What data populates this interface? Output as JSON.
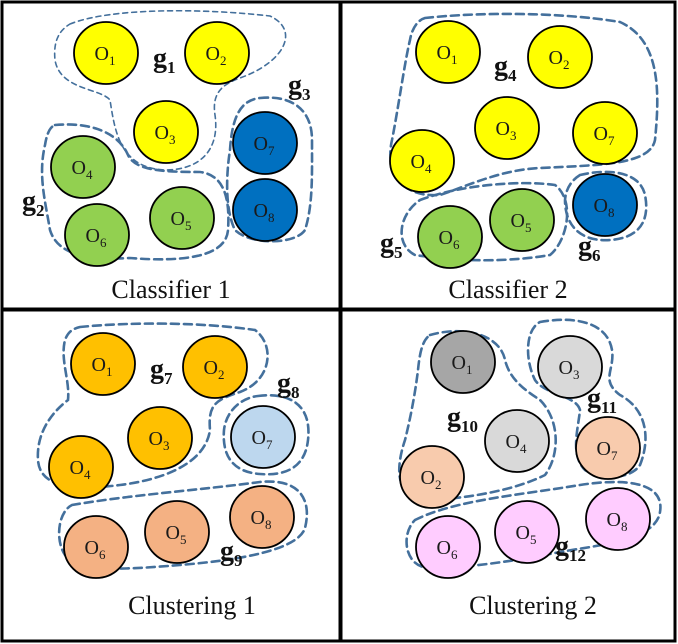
{
  "panels": [
    {
      "caption": "Classifier 1",
      "nodes": [
        {
          "label": "O",
          "sub": "1",
          "color": "#ffff00"
        },
        {
          "label": "O",
          "sub": "2",
          "color": "#ffff00"
        },
        {
          "label": "O",
          "sub": "3",
          "color": "#ffff00"
        },
        {
          "label": "O",
          "sub": "4",
          "color": "#92d050"
        },
        {
          "label": "O",
          "sub": "6",
          "color": "#92d050"
        },
        {
          "label": "O",
          "sub": "5",
          "color": "#92d050"
        },
        {
          "label": "O",
          "sub": "7",
          "color": "#0070c0"
        },
        {
          "label": "O",
          "sub": "8",
          "color": "#0070c0"
        }
      ],
      "groups": [
        {
          "label": "g",
          "sub": "1"
        },
        {
          "label": "g",
          "sub": "2"
        },
        {
          "label": "g",
          "sub": "3"
        }
      ]
    },
    {
      "caption": "Classifier 2",
      "nodes": [
        {
          "label": "O",
          "sub": "1",
          "color": "#ffff00"
        },
        {
          "label": "O",
          "sub": "2",
          "color": "#ffff00"
        },
        {
          "label": "O",
          "sub": "3",
          "color": "#ffff00"
        },
        {
          "label": "O",
          "sub": "7",
          "color": "#ffff00"
        },
        {
          "label": "O",
          "sub": "4",
          "color": "#ffff00"
        },
        {
          "label": "O",
          "sub": "6",
          "color": "#92d050"
        },
        {
          "label": "O",
          "sub": "5",
          "color": "#92d050"
        },
        {
          "label": "O",
          "sub": "8",
          "color": "#0070c0"
        }
      ],
      "groups": [
        {
          "label": "g",
          "sub": "4"
        },
        {
          "label": "g",
          "sub": "5"
        },
        {
          "label": "g",
          "sub": "6"
        }
      ]
    },
    {
      "caption": "Clustering 1",
      "nodes": [
        {
          "label": "O",
          "sub": "1",
          "color": "#ffc000"
        },
        {
          "label": "O",
          "sub": "2",
          "color": "#ffc000"
        },
        {
          "label": "O",
          "sub": "3",
          "color": "#ffc000"
        },
        {
          "label": "O",
          "sub": "4",
          "color": "#ffc000"
        },
        {
          "label": "O",
          "sub": "7",
          "color": "#bdd7ee"
        },
        {
          "label": "O",
          "sub": "6",
          "color": "#f4b183"
        },
        {
          "label": "O",
          "sub": "5",
          "color": "#f4b183"
        },
        {
          "label": "O",
          "sub": "8",
          "color": "#f4b183"
        }
      ],
      "groups": [
        {
          "label": "g",
          "sub": "7"
        },
        {
          "label": "g",
          "sub": "8"
        },
        {
          "label": "g",
          "sub": "9"
        }
      ]
    },
    {
      "caption": "Clustering 2",
      "nodes": [
        {
          "label": "O",
          "sub": "1",
          "color": "#a6a6a6"
        },
        {
          "label": "O",
          "sub": "3",
          "color": "#d9d9d9"
        },
        {
          "label": "O",
          "sub": "4",
          "color": "#d9d9d9"
        },
        {
          "label": "O",
          "sub": "2",
          "color": "#f8cbad"
        },
        {
          "label": "O",
          "sub": "7",
          "color": "#f8cbad"
        },
        {
          "label": "O",
          "sub": "6",
          "color": "#ffccff"
        },
        {
          "label": "O",
          "sub": "5",
          "color": "#ffccff"
        },
        {
          "label": "O",
          "sub": "8",
          "color": "#ffccff"
        }
      ],
      "groups": [
        {
          "label": "g",
          "sub": "10"
        },
        {
          "label": "g",
          "sub": "11"
        },
        {
          "label": "g",
          "sub": "12"
        }
      ]
    }
  ],
  "colors": {
    "border": "#000000",
    "dash": "#44709c"
  }
}
